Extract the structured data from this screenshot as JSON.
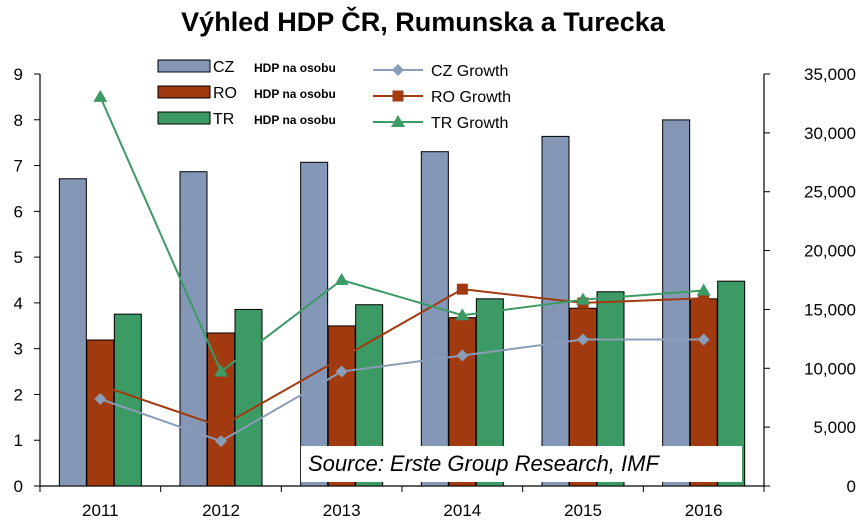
{
  "chart_data": {
    "type": "bar+line",
    "title": "Výhled HDP ČR, Rumunska a Turecka",
    "categories": [
      "2011",
      "2012",
      "2013",
      "2014",
      "2015",
      "2016"
    ],
    "bar_series": [
      {
        "name": "CZ",
        "label_suffix": "HDP na osobu",
        "color": "#8497B7",
        "values": [
          26100,
          26700,
          27500,
          28400,
          29700,
          31100
        ]
      },
      {
        "name": "RO",
        "label_suffix": "HDP na osobu",
        "color": "#A23A10",
        "values": [
          12400,
          13000,
          13600,
          14300,
          15100,
          15900
        ]
      },
      {
        "name": "TR",
        "label_suffix": "HDP na osobu",
        "color": "#3C9A64",
        "values": [
          14600,
          15000,
          15400,
          15900,
          16500,
          17400
        ]
      }
    ],
    "line_series": [
      {
        "name": "CZ Growth",
        "color": "#8A9DB8",
        "marker": "diamond",
        "values": [
          1.9,
          0.98,
          2.5,
          2.85,
          3.2,
          3.2
        ]
      },
      {
        "name": "RO Growth",
        "color": "#A23A10",
        "marker": "square",
        "values": [
          2.2,
          1.3,
          2.8,
          4.3,
          4.0,
          4.1
        ]
      },
      {
        "name": "TR Growth",
        "color": "#3C9A64",
        "marker": "triangle",
        "values": [
          8.5,
          2.5,
          4.5,
          3.73,
          4.07,
          4.27
        ]
      }
    ],
    "y_left": {
      "min": 0,
      "max": 9,
      "ticks": [
        "0",
        "1",
        "2",
        "3",
        "4",
        "5",
        "6",
        "7",
        "8",
        "9"
      ]
    },
    "y_right": {
      "min": 0,
      "max": 35000,
      "ticks": [
        "0",
        "5,000",
        "10,000",
        "15,000",
        "20,000",
        "25,000",
        "30,000",
        "35,000"
      ]
    },
    "legend_position": "top-center",
    "annotation": "Source: Erste Group Research, IMF"
  }
}
